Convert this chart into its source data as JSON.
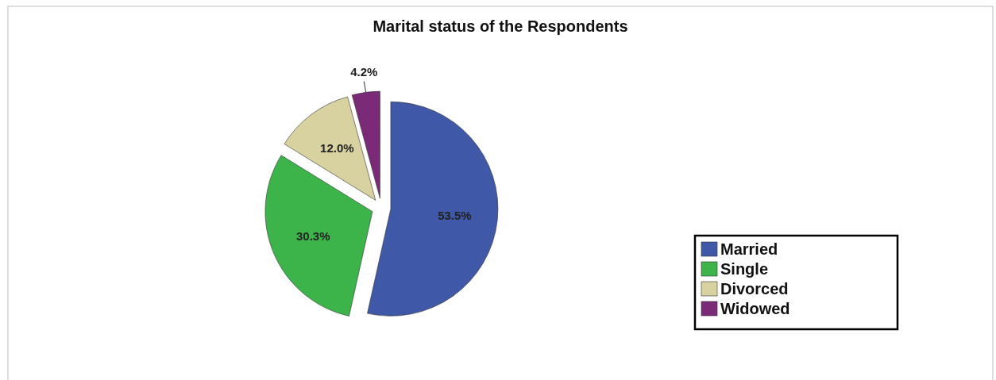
{
  "chart_data": {
    "type": "pie",
    "title": "Marital status of the Respondents",
    "categories": [
      "Married",
      "Single",
      "Divorced",
      "Widowed"
    ],
    "values": [
      53.5,
      30.3,
      12.0,
      4.2
    ],
    "colors": [
      "#3f58a8",
      "#3cb44a",
      "#d8d2a0",
      "#7b2a78"
    ],
    "value_labels": [
      "53.5%",
      "30.3%",
      "12.0%",
      "4.2%"
    ],
    "legend": "bottom right"
  }
}
